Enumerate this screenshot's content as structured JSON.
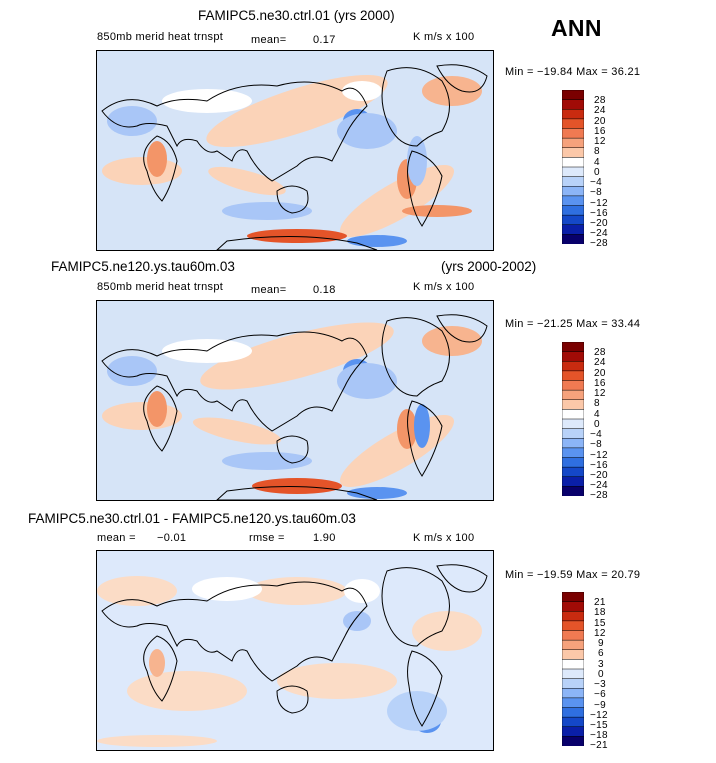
{
  "ann_label": "ANN",
  "colors": {
    "land_outline": "#000000",
    "levels": [
      "#08006b",
      "#0a1fa8",
      "#1448c8",
      "#2f6fe0",
      "#5a93f0",
      "#8cb5f7",
      "#b8d2f9",
      "#dde9fb",
      "#ffffff",
      "#ffe5d2",
      "#fbc8a9",
      "#f6a27c",
      "#f07a52",
      "#e45429",
      "#c92b10",
      "#a10b06",
      "#7a0000"
    ]
  },
  "panels": [
    {
      "header_left": "FAMIPC5.ne30.ctrl.01 (yrs 2000)",
      "header_right": "",
      "var_label": "850mb merid heat trnspt",
      "stat1_label": "mean=",
      "stat1_value": "0.17",
      "stat2_label": "",
      "stat2_value": "",
      "units": "K m/s x 100",
      "min_max": "Min = −19.84 Max =  36.21",
      "levels": [
        "28",
        "24",
        "20",
        "16",
        "12",
        "8",
        "4",
        "0",
        "−4",
        "−8",
        "−12",
        "−16",
        "−20",
        "−24",
        "−28"
      ]
    },
    {
      "header_left": "FAMIPC5.ne120.ys.tau60m.03",
      "header_right": "(yrs 2000-2002)",
      "var_label": "850mb merid heat trnspt",
      "stat1_label": "mean=",
      "stat1_value": "0.18",
      "stat2_label": "",
      "stat2_value": "",
      "units": "K m/s x 100",
      "min_max": "Min = −21.25 Max =  33.44",
      "levels": [
        "28",
        "24",
        "20",
        "16",
        "12",
        "8",
        "4",
        "0",
        "−4",
        "−8",
        "−12",
        "−16",
        "−20",
        "−24",
        "−28"
      ]
    },
    {
      "header_left": "FAMIPC5.ne30.ctrl.01 - FAMIPC5.ne120.ys.tau60m.03",
      "header_right": "",
      "var_label": "",
      "stat1_label": "mean =",
      "stat1_value": "−0.01",
      "stat2_label": "rmse =",
      "stat2_value": "1.90",
      "units": "K m/s x 100",
      "min_max": "Min = −19.59 Max =  20.79",
      "levels": [
        "21",
        "18",
        "15",
        "12",
        "9",
        "6",
        "3",
        "0",
        "−3",
        "−6",
        "−9",
        "−12",
        "−15",
        "−18",
        "−21"
      ]
    }
  ],
  "chart_data": [
    {
      "type": "heatmap",
      "title": "FAMIPC5.ne30.ctrl.01 (yrs 2000)",
      "variable": "850mb merid heat trnspt",
      "units": "K m/s x 100",
      "mean": 0.17,
      "min": -19.84,
      "max": 36.21,
      "contour_levels": [
        -28,
        -24,
        -20,
        -16,
        -12,
        -8,
        -4,
        0,
        4,
        8,
        12,
        16,
        20,
        24,
        28
      ],
      "season": "ANN"
    },
    {
      "type": "heatmap",
      "title": "FAMIPC5.ne120.ys.tau60m.03 (yrs 2000-2002)",
      "variable": "850mb merid heat trnspt",
      "units": "K m/s x 100",
      "mean": 0.18,
      "min": -21.25,
      "max": 33.44,
      "contour_levels": [
        -28,
        -24,
        -20,
        -16,
        -12,
        -8,
        -4,
        0,
        4,
        8,
        12,
        16,
        20,
        24,
        28
      ],
      "season": "ANN"
    },
    {
      "type": "heatmap",
      "title": "FAMIPC5.ne30.ctrl.01 - FAMIPC5.ne120.ys.tau60m.03",
      "units": "K m/s x 100",
      "mean": -0.01,
      "rmse": 1.9,
      "min": -19.59,
      "max": 20.79,
      "contour_levels": [
        -21,
        -18,
        -15,
        -12,
        -9,
        -6,
        -3,
        0,
        3,
        6,
        9,
        12,
        15,
        18,
        21
      ],
      "season": "ANN"
    }
  ]
}
